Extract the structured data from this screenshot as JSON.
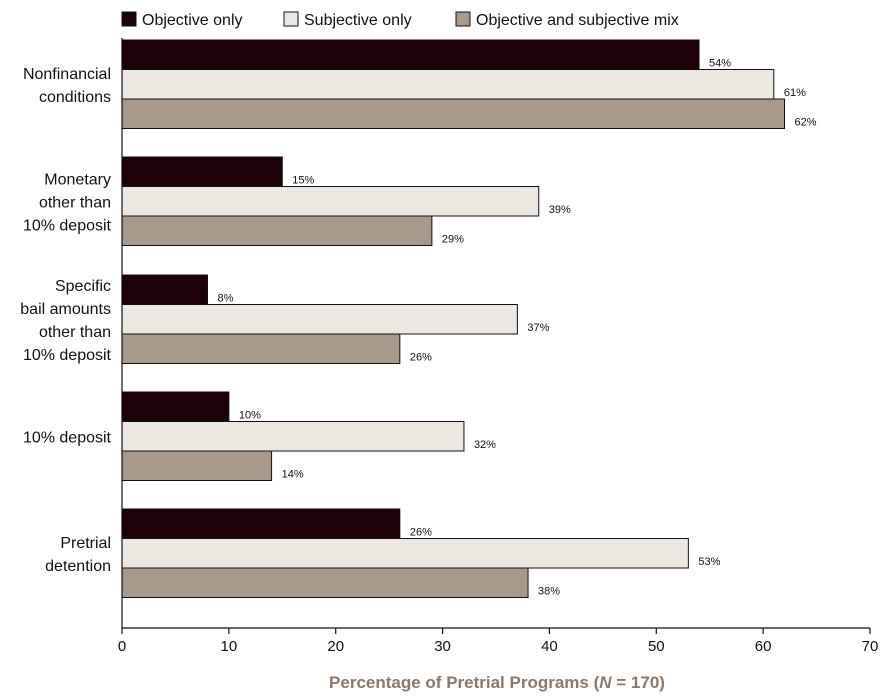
{
  "chart_data": {
    "type": "bar",
    "orientation": "horizontal",
    "title": "",
    "xlabel_prefix": "Percentage of Pretrial Programs (",
    "xlabel_n": "N",
    "xlabel_suffix": " = 170)",
    "ylabel": "",
    "xlim": [
      0,
      70
    ],
    "xticks": [
      0,
      10,
      20,
      30,
      40,
      50,
      60,
      70
    ],
    "grid": false,
    "legend_position": "top",
    "categories": [
      [
        "Nonfinancial",
        "conditions"
      ],
      [
        "Monetary",
        "other than",
        "10% deposit"
      ],
      [
        "Specific",
        "bail amounts",
        "other than",
        "10% deposit"
      ],
      [
        "10% deposit"
      ],
      [
        "Pretrial",
        "detention"
      ]
    ],
    "series": [
      {
        "name": "Objective only",
        "color": "#1e0008",
        "values": [
          54,
          15,
          8,
          10,
          26
        ]
      },
      {
        "name": "Subjective only",
        "color": "#ede7e1",
        "values": [
          61,
          39,
          37,
          32,
          53
        ]
      },
      {
        "name": "Objective and subjective mix",
        "color": "#a8998a",
        "values": [
          62,
          29,
          26,
          14,
          38
        ]
      }
    ],
    "value_suffix": "%"
  }
}
